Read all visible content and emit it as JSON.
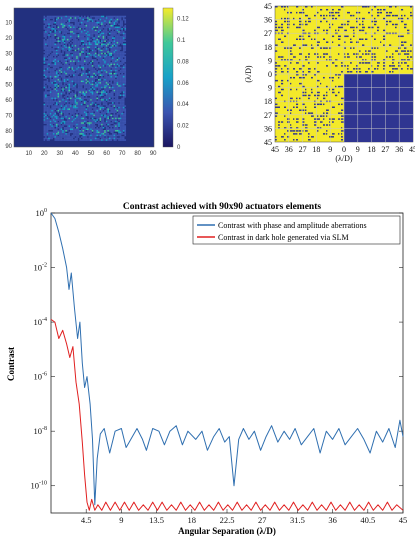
{
  "chart_data": [
    {
      "type": "heatmap",
      "x_ticks": [
        "10",
        "20",
        "30",
        "40",
        "50",
        "60",
        "70",
        "80",
        "90"
      ],
      "y_ticks": [
        "10",
        "20",
        "30",
        "40",
        "50",
        "60",
        "70",
        "80",
        "90"
      ],
      "colorbar_ticks": [
        "0.12",
        "0.1",
        "0.08",
        "0.06",
        "0.04",
        "0.02",
        "0"
      ],
      "colorbar_range": [
        0,
        0.13
      ],
      "colormap": [
        "#1b1660",
        "#3b54b0",
        "#18a1c8",
        "#3fc89a",
        "#f6ec2a"
      ]
    },
    {
      "type": "heatmap",
      "ylabel": "(λ/D)",
      "xlabel": "(λ/D)",
      "x_ticks": [
        "45",
        "36",
        "27",
        "18",
        "9",
        "0",
        "9",
        "18",
        "27",
        "36",
        "45"
      ],
      "y_ticks": [
        "45",
        "36",
        "27",
        "18",
        "9",
        "0",
        "9",
        "18",
        "27",
        "36",
        "45"
      ],
      "grid": true,
      "dark_hole_region": {
        "x": [
          0,
          45
        ],
        "y": [
          -45,
          0
        ]
      },
      "colors": {
        "background": "#f3e92a",
        "pattern": "#2f3591",
        "grid": "#c9c9c9"
      }
    },
    {
      "type": "line",
      "title": "Contrast achieved with 90x90 actuators elements",
      "xlabel": "Angular Separation (λ/D)",
      "ylabel": "Contrast",
      "x_ticks": [
        "4.5",
        "9",
        "13.5",
        "18",
        "22.5",
        "27",
        "31.5",
        "36",
        "40.5",
        "45"
      ],
      "y_ticks": [
        {
          "base": "10",
          "exp": "0",
          "value": 0
        },
        {
          "base": "10",
          "exp": "-2",
          "value": -2
        },
        {
          "base": "10",
          "exp": "-4",
          "value": -4
        },
        {
          "base": "10",
          "exp": "-6",
          "value": -6
        },
        {
          "base": "10",
          "exp": "-8",
          "value": -8
        },
        {
          "base": "10",
          "exp": "-10",
          "value": -10
        }
      ],
      "xlim": [
        0,
        45
      ],
      "ylim_log10": [
        -11,
        0
      ],
      "y_scale": "log",
      "legend_position": "top-right",
      "series": [
        {
          "name": "Contrast with phase and amplitude aberrations",
          "color": "#2f6fb0",
          "points": [
            [
              0,
              0
            ],
            [
              0.5,
              -0.2
            ],
            [
              1,
              -0.7
            ],
            [
              1.5,
              -1.3
            ],
            [
              2,
              -2.0
            ],
            [
              2.3,
              -2.8
            ],
            [
              2.6,
              -2.2
            ],
            [
              3,
              -3.5
            ],
            [
              3.4,
              -4.6
            ],
            [
              3.7,
              -4.0
            ],
            [
              4,
              -5.5
            ],
            [
              4.3,
              -6.4
            ],
            [
              4.6,
              -6.0
            ],
            [
              5,
              -7.0
            ],
            [
              5.3,
              -8.3
            ],
            [
              5.6,
              -10.7
            ],
            [
              5.9,
              -9.0
            ],
            [
              6.3,
              -8.1
            ],
            [
              6.8,
              -7.9
            ],
            [
              7.5,
              -8.8
            ],
            [
              8.2,
              -8.0
            ],
            [
              9,
              -7.9
            ],
            [
              9.6,
              -8.6
            ],
            [
              10.2,
              -8.3
            ],
            [
              11,
              -7.9
            ],
            [
              11.7,
              -8.3
            ],
            [
              12.2,
              -8.7
            ],
            [
              13,
              -7.9
            ],
            [
              13.8,
              -8.0
            ],
            [
              14.5,
              -8.5
            ],
            [
              15.2,
              -8.0
            ],
            [
              16,
              -7.8
            ],
            [
              16.8,
              -8.5
            ],
            [
              17.5,
              -8.0
            ],
            [
              18.5,
              -8.3
            ],
            [
              19.3,
              -8.0
            ],
            [
              20,
              -8.7
            ],
            [
              20.8,
              -8.2
            ],
            [
              21.5,
              -7.9
            ],
            [
              22.2,
              -8.4
            ],
            [
              22.8,
              -8.2
            ],
            [
              23.4,
              -10.0
            ],
            [
              24,
              -8.3
            ],
            [
              24.6,
              -7.9
            ],
            [
              25.3,
              -8.3
            ],
            [
              26,
              -8.0
            ],
            [
              26.8,
              -8.7
            ],
            [
              27.5,
              -8.2
            ],
            [
              28.2,
              -7.8
            ],
            [
              29,
              -8.4
            ],
            [
              29.8,
              -8.0
            ],
            [
              30.5,
              -8.3
            ],
            [
              31.2,
              -7.9
            ],
            [
              32,
              -8.5
            ],
            [
              32.8,
              -8.2
            ],
            [
              33.6,
              -7.9
            ],
            [
              34.4,
              -8.8
            ],
            [
              35.2,
              -8.0
            ],
            [
              36,
              -8.3
            ],
            [
              36.8,
              -7.9
            ],
            [
              37.6,
              -8.5
            ],
            [
              38.4,
              -8.2
            ],
            [
              39.2,
              -7.9
            ],
            [
              40,
              -8.3
            ],
            [
              40.8,
              -8.8
            ],
            [
              41.6,
              -8.0
            ],
            [
              42.4,
              -8.4
            ],
            [
              43.2,
              -7.9
            ],
            [
              44,
              -8.6
            ],
            [
              44.6,
              -7.6
            ],
            [
              45,
              -8.2
            ]
          ]
        },
        {
          "name": "Contrast in dark hole generated via SLM",
          "color": "#e02020",
          "points": [
            [
              0,
              -3.9
            ],
            [
              0.5,
              -4.0
            ],
            [
              1,
              -4.6
            ],
            [
              1.5,
              -4.3
            ],
            [
              2,
              -4.8
            ],
            [
              2.4,
              -5.3
            ],
            [
              2.8,
              -4.9
            ],
            [
              3.2,
              -6.2
            ],
            [
              3.6,
              -7.0
            ],
            [
              4,
              -8.4
            ],
            [
              4.3,
              -9.6
            ],
            [
              4.6,
              -10.6
            ],
            [
              4.9,
              -10.9
            ],
            [
              5.2,
              -10.5
            ],
            [
              5.6,
              -10.9
            ],
            [
              6,
              -10.7
            ],
            [
              6.5,
              -10.9
            ],
            [
              7,
              -10.6
            ],
            [
              7.6,
              -10.9
            ],
            [
              8.2,
              -10.6
            ],
            [
              8.8,
              -10.9
            ],
            [
              9.4,
              -10.6
            ],
            [
              10,
              -10.9
            ],
            [
              10.6,
              -10.6
            ],
            [
              11.2,
              -10.9
            ],
            [
              11.8,
              -10.7
            ],
            [
              12.4,
              -10.9
            ],
            [
              13,
              -10.6
            ],
            [
              13.6,
              -10.9
            ],
            [
              14.2,
              -10.6
            ],
            [
              14.8,
              -10.9
            ],
            [
              15.4,
              -10.7
            ],
            [
              16,
              -10.9
            ],
            [
              16.6,
              -10.6
            ],
            [
              17.2,
              -10.9
            ],
            [
              17.8,
              -10.7
            ],
            [
              18.4,
              -10.9
            ],
            [
              19,
              -10.6
            ],
            [
              19.6,
              -10.9
            ],
            [
              20.2,
              -10.7
            ],
            [
              20.8,
              -10.9
            ],
            [
              21.4,
              -10.6
            ],
            [
              22,
              -10.9
            ],
            [
              22.6,
              -10.7
            ],
            [
              23.2,
              -10.9
            ],
            [
              23.8,
              -10.6
            ],
            [
              24.4,
              -10.9
            ],
            [
              25,
              -10.7
            ],
            [
              25.6,
              -10.9
            ],
            [
              26.2,
              -10.6
            ],
            [
              26.8,
              -10.9
            ],
            [
              27.4,
              -10.7
            ],
            [
              28,
              -10.9
            ],
            [
              28.6,
              -10.6
            ],
            [
              29.2,
              -10.9
            ],
            [
              29.8,
              -10.7
            ],
            [
              30.4,
              -10.9
            ],
            [
              31,
              -10.6
            ],
            [
              31.6,
              -10.9
            ],
            [
              32.2,
              -10.7
            ],
            [
              32.8,
              -10.9
            ],
            [
              33.4,
              -10.6
            ],
            [
              34,
              -10.9
            ],
            [
              34.6,
              -10.7
            ],
            [
              35.2,
              -10.9
            ],
            [
              35.8,
              -10.6
            ],
            [
              36.4,
              -10.9
            ],
            [
              37,
              -10.7
            ],
            [
              37.6,
              -10.9
            ],
            [
              38.2,
              -10.6
            ],
            [
              38.8,
              -10.9
            ],
            [
              39.4,
              -10.7
            ],
            [
              40,
              -10.9
            ],
            [
              40.6,
              -10.6
            ],
            [
              41.2,
              -10.9
            ],
            [
              41.8,
              -10.7
            ],
            [
              42.4,
              -10.9
            ],
            [
              43,
              -10.6
            ],
            [
              43.6,
              -10.9
            ],
            [
              44.2,
              -10.7
            ],
            [
              45,
              -10.9
            ]
          ]
        }
      ]
    }
  ]
}
